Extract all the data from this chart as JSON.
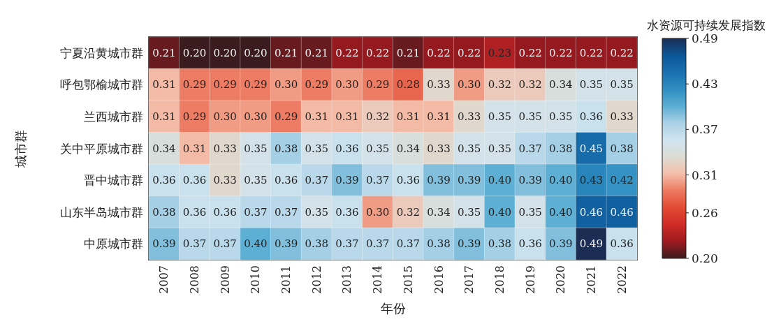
{
  "chart_data": {
    "type": "heatmap",
    "xlabel": "年份",
    "ylabel": "城市群",
    "clabel": "水资源可持续发展指数",
    "categories": [
      "2007",
      "2008",
      "2009",
      "2010",
      "2011",
      "2012",
      "2013",
      "2014",
      "2015",
      "2016",
      "2017",
      "2018",
      "2019",
      "2020",
      "2021",
      "2022"
    ],
    "y_categories": [
      "宁夏沿黄城市群",
      "呼包鄂榆城市群",
      "兰西城市群",
      "关中平原城市群",
      "晋中城市群",
      "山东半岛城市群",
      "中原城市群"
    ],
    "cells": [
      [
        0.21,
        0.2,
        0.2,
        0.2,
        0.21,
        0.21,
        0.22,
        0.22,
        0.21,
        0.22,
        0.22,
        0.23,
        0.22,
        0.22,
        0.22,
        0.22
      ],
      [
        0.31,
        0.29,
        0.29,
        0.29,
        0.3,
        0.29,
        0.3,
        0.29,
        0.28,
        0.33,
        0.3,
        0.32,
        0.32,
        0.34,
        0.35,
        0.35
      ],
      [
        0.31,
        0.29,
        0.3,
        0.3,
        0.29,
        0.31,
        0.31,
        0.32,
        0.31,
        0.31,
        0.33,
        0.35,
        0.35,
        0.35,
        0.36,
        0.33
      ],
      [
        0.34,
        0.31,
        0.33,
        0.35,
        0.38,
        0.35,
        0.36,
        0.35,
        0.34,
        0.33,
        0.35,
        0.35,
        0.37,
        0.38,
        0.45,
        0.38
      ],
      [
        0.36,
        0.36,
        0.33,
        0.35,
        0.36,
        0.37,
        0.39,
        0.37,
        0.36,
        0.39,
        0.39,
        0.4,
        0.39,
        0.4,
        0.43,
        0.42
      ],
      [
        0.38,
        0.36,
        0.36,
        0.37,
        0.37,
        0.35,
        0.36,
        0.3,
        0.32,
        0.34,
        0.35,
        0.4,
        0.35,
        0.4,
        0.46,
        0.46
      ],
      [
        0.39,
        0.37,
        0.37,
        0.4,
        0.39,
        0.38,
        0.37,
        0.37,
        0.37,
        0.38,
        0.39,
        0.38,
        0.36,
        0.39,
        0.49,
        0.36
      ]
    ],
    "cell_labels": [
      [
        "0.21",
        "0.20",
        "0.20",
        "0.20",
        "0.21",
        "0.21",
        "0.22",
        "0.22",
        "0.21",
        "0.22",
        "0.22",
        "0.23",
        "0.22",
        "0.22",
        "0.22",
        "0.22"
      ],
      [
        "0.31",
        "0.29",
        "0.29",
        "0.29",
        "0.30",
        "0.29",
        "0.30",
        "0.29",
        "0.28",
        "0.33",
        "0.30",
        "0.32",
        "0.32",
        "0.34",
        "0.35",
        "0.35"
      ],
      [
        "0.31",
        "0.29",
        "0.30",
        "0.30",
        "0.29",
        "0.31",
        "0.31",
        "0.32",
        "0.31",
        "0.31",
        "0.33",
        "0.35",
        "0.35",
        "0.35",
        "0.36",
        "0.33"
      ],
      [
        "0.34",
        "0.31",
        "0.33",
        "0.35",
        "0.38",
        "0.35",
        "0.36",
        "0.35",
        "0.34",
        "0.33",
        "0.35",
        "0.35",
        "0.37",
        "0.38",
        "0.45",
        "0.38"
      ],
      [
        "0.36",
        "0.36",
        "0.33",
        "0.35",
        "0.36",
        "0.37",
        "0.39",
        "0.37",
        "0.36",
        "0.39",
        "0.39",
        "0.40",
        "0.39",
        "0.40",
        "0.43",
        "0.42"
      ],
      [
        "0.38",
        "0.36",
        "0.36",
        "0.37",
        "0.37",
        "0.35",
        "0.36",
        "0.30",
        "0.32",
        "0.34",
        "0.35",
        "0.40",
        "0.35",
        "0.40",
        "0.46",
        "0.46"
      ],
      [
        "0.39",
        "0.37",
        "0.37",
        "0.40",
        "0.39",
        "0.38",
        "0.37",
        "0.37",
        "0.37",
        "0.38",
        "0.39",
        "0.38",
        "0.36",
        "0.39",
        "0.49",
        "0.36"
      ]
    ],
    "clim": [
      0.2,
      0.49
    ],
    "cticks": [
      {
        "value": 0.2,
        "label": "0.20"
      },
      0.26,
      0.31,
      0.37,
      0.43,
      0.49
    ],
    "data_labels": true
  }
}
